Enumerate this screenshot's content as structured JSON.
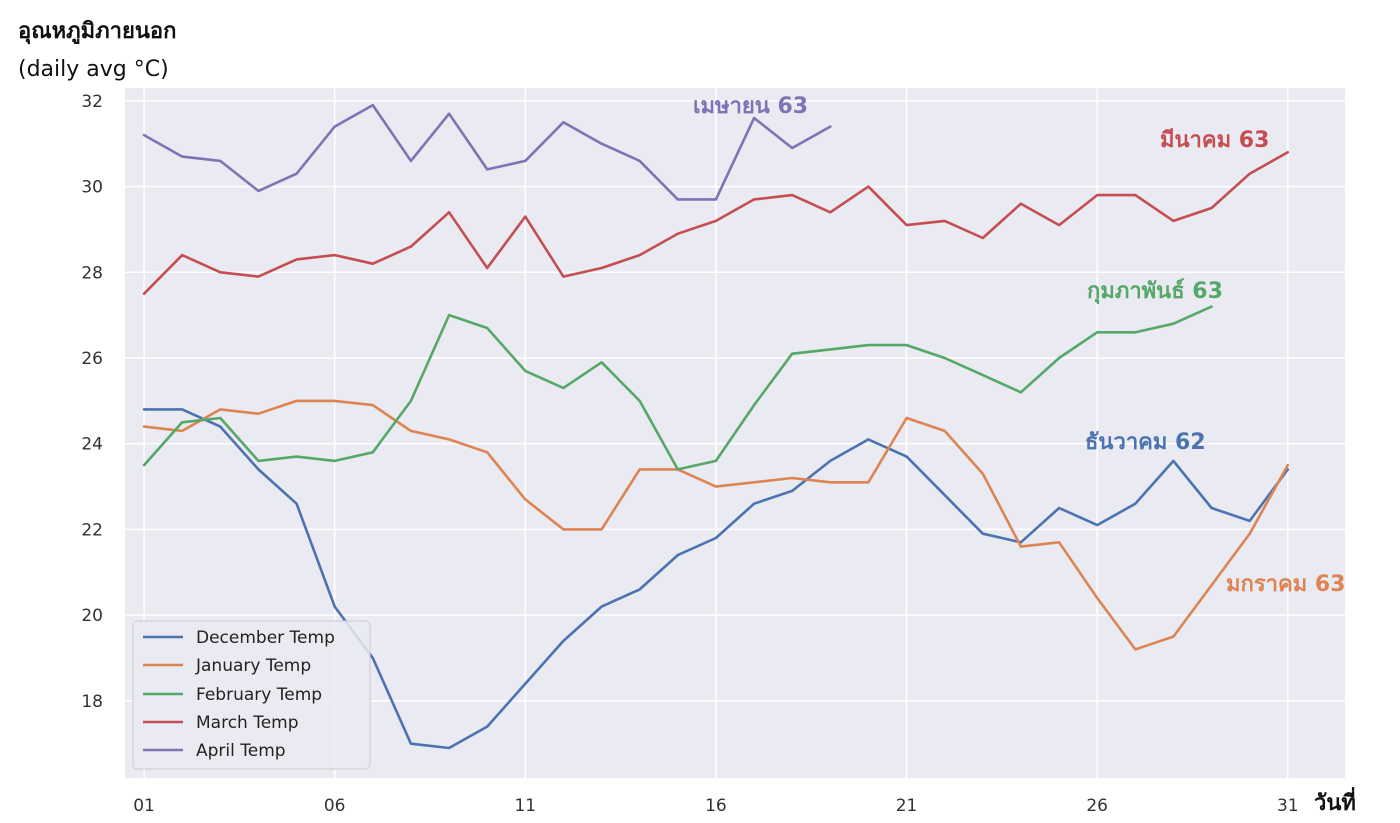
{
  "chart_data": {
    "type": "line",
    "ylabel": "อุณหภูมิภายนอก",
    "ylabel_unit": "(daily avg °C)",
    "xlabel": "วันที่",
    "x_ticks": [
      "01",
      "06",
      "11",
      "16",
      "21",
      "26",
      "31"
    ],
    "y_ticks": [
      "18",
      "20",
      "22",
      "24",
      "26",
      "28",
      "30",
      "32"
    ],
    "xlim": [
      -0.5,
      31.5
    ],
    "ylim": [
      16.2,
      32.3
    ],
    "grid": true,
    "legend_position": "bottom-left",
    "series": [
      {
        "name": "December Temp",
        "color": "#4c72b0",
        "annotation": "ธันวาคม 62",
        "values": [
          24.8,
          24.8,
          24.4,
          23.4,
          22.6,
          20.2,
          19.0,
          17.0,
          16.9,
          17.4,
          18.4,
          19.4,
          20.2,
          20.6,
          21.4,
          21.8,
          22.6,
          22.9,
          23.6,
          24.1,
          23.7,
          22.8,
          21.9,
          21.7,
          22.5,
          22.1,
          22.6,
          23.6,
          22.5,
          22.2,
          23.4
        ]
      },
      {
        "name": "January Temp",
        "color": "#dd8452",
        "annotation": "มกราคม 63",
        "values": [
          24.4,
          24.3,
          24.8,
          24.7,
          25.0,
          25.0,
          24.9,
          24.3,
          24.1,
          23.8,
          22.7,
          22.0,
          22.0,
          23.4,
          23.4,
          23.0,
          23.1,
          23.2,
          23.1,
          23.1,
          24.6,
          24.3,
          23.3,
          21.6,
          21.7,
          20.4,
          19.2,
          19.5,
          20.7,
          21.9,
          23.5
        ]
      },
      {
        "name": "February Temp",
        "color": "#55a868",
        "annotation": "กุมภาพันธ์ 63",
        "values": [
          23.5,
          24.5,
          24.6,
          23.6,
          23.7,
          23.6,
          23.8,
          25.0,
          27.0,
          26.7,
          25.7,
          25.3,
          25.9,
          25.0,
          23.4,
          23.6,
          24.9,
          26.1,
          26.2,
          26.3,
          26.3,
          26.0,
          25.6,
          25.2,
          26.0,
          26.6,
          26.6,
          26.8,
          27.2
        ]
      },
      {
        "name": "March Temp",
        "color": "#c44e52",
        "annotation": "มีนาคม 63",
        "values": [
          27.5,
          28.4,
          28.0,
          27.9,
          28.3,
          28.4,
          28.2,
          28.6,
          29.4,
          28.1,
          29.3,
          27.9,
          28.1,
          28.4,
          28.9,
          29.2,
          29.7,
          29.8,
          29.4,
          30.0,
          29.1,
          29.2,
          28.8,
          29.6,
          29.1,
          29.8,
          29.8,
          29.2,
          29.5,
          30.3,
          30.8
        ]
      },
      {
        "name": "April Temp",
        "color": "#8172b3",
        "annotation": "เมษายน 63",
        "values": [
          31.2,
          30.7,
          30.6,
          29.9,
          30.3,
          31.4,
          31.9,
          30.6,
          31.7,
          30.4,
          30.6,
          31.5,
          31.0,
          30.6,
          29.7,
          29.7,
          31.6,
          30.9,
          31.4
        ]
      }
    ]
  }
}
